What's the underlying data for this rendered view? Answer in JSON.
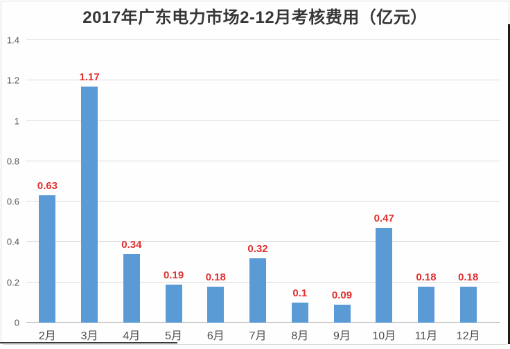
{
  "chart_data": {
    "type": "bar",
    "title": "2017年广东电力市场2-12月考核费用（亿元）",
    "categories": [
      "2月",
      "3月",
      "4月",
      "5月",
      "6月",
      "7月",
      "8月",
      "9月",
      "10月",
      "11月",
      "12月"
    ],
    "values": [
      0.63,
      1.17,
      0.34,
      0.19,
      0.18,
      0.32,
      0.1,
      0.09,
      0.47,
      0.18,
      0.18
    ],
    "value_labels": [
      "0.63",
      "1.17",
      "0.34",
      "0.19",
      "0.18",
      "0.32",
      "0.1",
      "0.09",
      "0.47",
      "0.18",
      "0.18"
    ],
    "xlabel": "",
    "ylabel": "",
    "ylim": [
      0,
      1.4
    ],
    "y_ticks": [
      0,
      0.2,
      0.4,
      0.6,
      0.8,
      1,
      1.2,
      1.4
    ],
    "y_tick_labels": [
      "0",
      "0.2",
      "0.4",
      "0.6",
      "0.8",
      "1",
      "1.2",
      "1.4"
    ],
    "grid": "horizontal",
    "legend": "none",
    "bar_color": "#5b9bd5",
    "value_label_color": "#e03030",
    "axis_label_color": "#4d4d4d",
    "gridline_color": "#dadada",
    "title_color": "#363636"
  }
}
